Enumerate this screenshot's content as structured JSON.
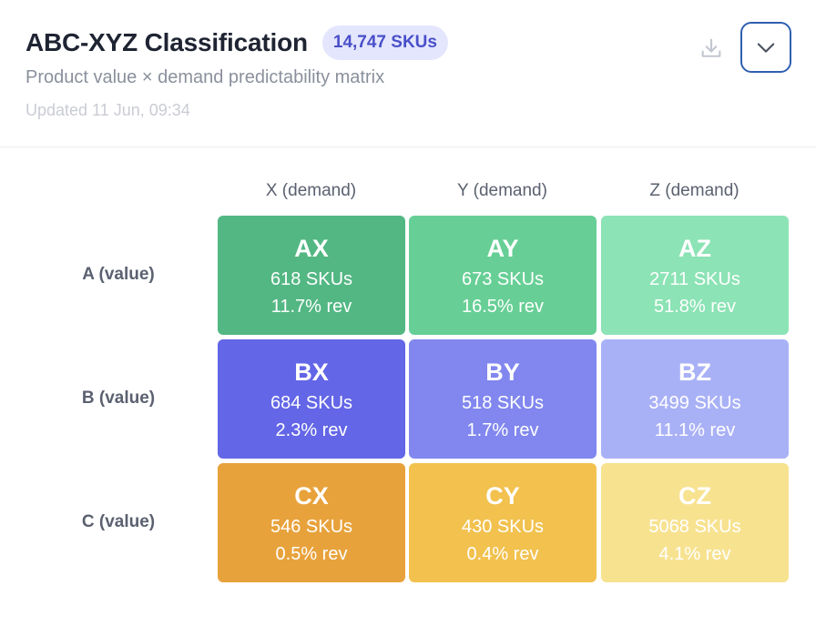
{
  "header": {
    "title": "ABC-XYZ Classification",
    "badge": "14,747 SKUs",
    "subtitle": "Product value × demand predictability matrix",
    "updated": "Updated 11 Jun, 09:34"
  },
  "icons": {
    "download": "download-icon",
    "collapse": "chevron-down-icon"
  },
  "colors": {
    "AX": "#53b783",
    "AY": "#67cf95",
    "AZ": "#8ce3b5",
    "BX": "#6366e6",
    "BY": "#8187ee",
    "BZ": "#a9b1f6",
    "CX": "#e8a23b",
    "CY": "#f2c14e",
    "CZ": "#f7e290"
  },
  "chart_data": {
    "type": "heatmap",
    "columns": [
      "X (demand)",
      "Y (demand)",
      "Z (demand)"
    ],
    "rows": [
      "A (value)",
      "B (value)",
      "C (value)"
    ],
    "cells": [
      [
        {
          "code": "AX",
          "skus": "618 SKUs",
          "rev": "11.7% rev",
          "sku_count": 618,
          "rev_pct": 11.7
        },
        {
          "code": "AY",
          "skus": "673 SKUs",
          "rev": "16.5% rev",
          "sku_count": 673,
          "rev_pct": 16.5
        },
        {
          "code": "AZ",
          "skus": "2711 SKUs",
          "rev": "51.8% rev",
          "sku_count": 2711,
          "rev_pct": 51.8
        }
      ],
      [
        {
          "code": "BX",
          "skus": "684 SKUs",
          "rev": "2.3% rev",
          "sku_count": 684,
          "rev_pct": 2.3
        },
        {
          "code": "BY",
          "skus": "518 SKUs",
          "rev": "1.7% rev",
          "sku_count": 518,
          "rev_pct": 1.7
        },
        {
          "code": "BZ",
          "skus": "3499 SKUs",
          "rev": "11.1% rev",
          "sku_count": 3499,
          "rev_pct": 11.1
        }
      ],
      [
        {
          "code": "CX",
          "skus": "546 SKUs",
          "rev": "0.5% rev",
          "sku_count": 546,
          "rev_pct": 0.5
        },
        {
          "code": "CY",
          "skus": "430 SKUs",
          "rev": "0.4% rev",
          "sku_count": 430,
          "rev_pct": 0.4
        },
        {
          "code": "CZ",
          "skus": "5068 SKUs",
          "rev": "4.1% rev",
          "sku_count": 5068,
          "rev_pct": 4.1
        }
      ]
    ]
  }
}
